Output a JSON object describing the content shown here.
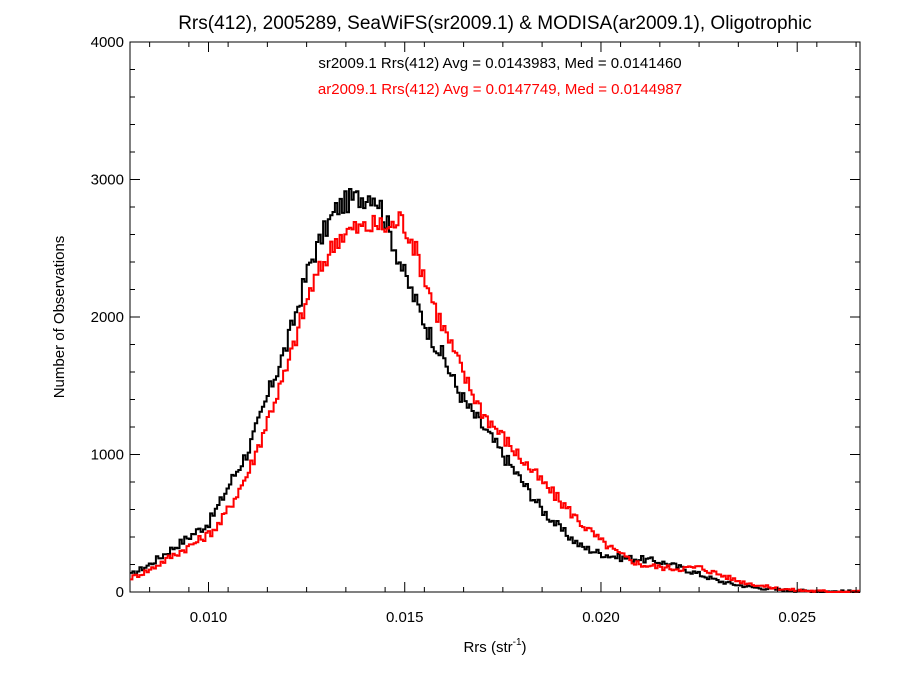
{
  "chart_data": {
    "type": "line",
    "title": "Rrs(412), 2005289, SeaWiFS(sr2009.1) & MODISA(ar2009.1), Oligotrophic",
    "xlabel_main": "Rrs (str",
    "xlabel_sup": "-1",
    "xlabel_close": ")",
    "ylabel": "Number of Observations",
    "xlim": [
      0.008,
      0.0266
    ],
    "ylim": [
      0,
      4000
    ],
    "x_ticks": [
      0.01,
      0.015,
      0.02,
      0.025
    ],
    "x_tick_labels": [
      "0.010",
      "0.015",
      "0.020",
      "0.025"
    ],
    "y_ticks": [
      0,
      1000,
      2000,
      3000,
      4000
    ],
    "y_tick_labels": [
      "0",
      "1000",
      "2000",
      "3000",
      "4000"
    ],
    "grid": false,
    "annotations": [
      "sr2009.1 Rrs(412) Avg = 0.0143983, Med = 0.0141460",
      "ar2009.1 Rrs(412) Avg = 0.0147749, Med = 0.0144987"
    ],
    "series": [
      {
        "color": "#000000",
        "x": [
          0.008,
          0.0085,
          0.009,
          0.0095,
          0.01,
          0.0103,
          0.0106,
          0.011,
          0.0113,
          0.0116,
          0.012,
          0.0123,
          0.0126,
          0.013,
          0.0133,
          0.0136,
          0.014,
          0.0142,
          0.0144,
          0.0147,
          0.015,
          0.0153,
          0.0156,
          0.016,
          0.0163,
          0.0166,
          0.017,
          0.0175,
          0.018,
          0.0185,
          0.019,
          0.0195,
          0.02,
          0.0205,
          0.021,
          0.0215,
          0.022,
          0.0225,
          0.023,
          0.0235,
          0.024,
          0.0245,
          0.025,
          0.0255,
          0.026,
          0.0266
        ],
        "y": [
          120,
          200,
          300,
          400,
          500,
          650,
          820,
          1020,
          1250,
          1500,
          1800,
          2100,
          2400,
          2650,
          2800,
          2850,
          2880,
          2900,
          2800,
          2550,
          2300,
          2100,
          1900,
          1700,
          1500,
          1350,
          1200,
          1000,
          800,
          600,
          450,
          330,
          280,
          250,
          240,
          220,
          180,
          130,
          80,
          50,
          30,
          18,
          10,
          5,
          3,
          2
        ]
      },
      {
        "color": "#ff0000",
        "x": [
          0.008,
          0.0085,
          0.009,
          0.0095,
          0.01,
          0.0103,
          0.0106,
          0.011,
          0.0113,
          0.0116,
          0.012,
          0.0123,
          0.0126,
          0.013,
          0.0133,
          0.0136,
          0.014,
          0.0143,
          0.0146,
          0.0149,
          0.0152,
          0.0155,
          0.0158,
          0.0162,
          0.0166,
          0.017,
          0.0175,
          0.018,
          0.0185,
          0.019,
          0.0195,
          0.02,
          0.0205,
          0.021,
          0.0215,
          0.022,
          0.0225,
          0.023,
          0.0235,
          0.024,
          0.0245,
          0.025,
          0.0255,
          0.026,
          0.0266
        ],
        "y": [
          100,
          160,
          250,
          330,
          420,
          500,
          650,
          860,
          1080,
          1330,
          1620,
          1920,
          2200,
          2430,
          2580,
          2630,
          2650,
          2670,
          2640,
          2720,
          2550,
          2300,
          2050,
          1780,
          1520,
          1300,
          1130,
          960,
          800,
          650,
          500,
          370,
          270,
          200,
          180,
          170,
          180,
          130,
          80,
          50,
          25,
          12,
          6,
          3,
          2
        ]
      }
    ]
  }
}
